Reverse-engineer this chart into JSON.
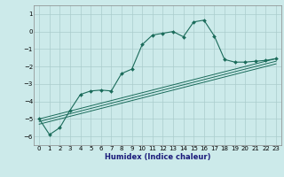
{
  "xlabel": "Humidex (Indice chaleur)",
  "bg_color": "#cceaea",
  "grid_color": "#aacccc",
  "line_color": "#1a6b5a",
  "xlim": [
    -0.5,
    23.5
  ],
  "ylim": [
    -6.5,
    1.5
  ],
  "yticks": [
    1,
    0,
    -1,
    -2,
    -3,
    -4,
    -5,
    -6
  ],
  "xticks": [
    0,
    1,
    2,
    3,
    4,
    5,
    6,
    7,
    8,
    9,
    10,
    11,
    12,
    13,
    14,
    15,
    16,
    17,
    18,
    19,
    20,
    21,
    22,
    23
  ],
  "main_x": [
    0,
    1,
    2,
    3,
    4,
    5,
    6,
    7,
    8,
    9,
    10,
    11,
    12,
    13,
    14,
    15,
    16,
    17,
    18,
    19,
    20,
    21,
    22,
    23
  ],
  "main_y": [
    -5.0,
    -5.9,
    -5.5,
    -4.5,
    -3.6,
    -3.4,
    -3.35,
    -3.4,
    -2.4,
    -2.15,
    -0.75,
    -0.2,
    -0.1,
    0.0,
    -0.3,
    0.55,
    0.65,
    -0.25,
    -1.6,
    -1.75,
    -1.75,
    -1.7,
    -1.65,
    -1.55
  ],
  "line2_x": [
    0,
    23
  ],
  "line2_y": [
    -5.0,
    -1.55
  ],
  "line3_x": [
    0,
    23
  ],
  "line3_y": [
    -5.15,
    -1.7
  ],
  "line4_x": [
    0,
    23
  ],
  "line4_y": [
    -5.3,
    -1.85
  ]
}
